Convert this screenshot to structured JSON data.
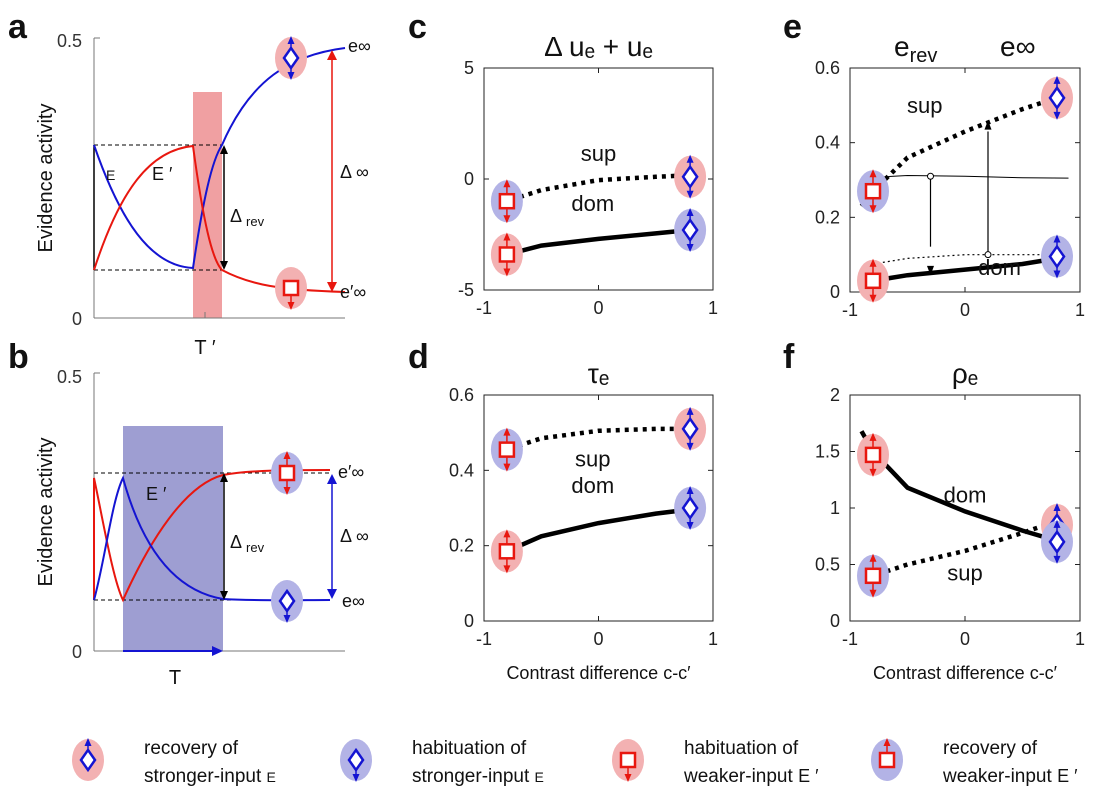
{
  "panel_letters": [
    "a",
    "b",
    "c",
    "d",
    "e",
    "f"
  ],
  "colors": {
    "red": "#e8170f",
    "blue": "#1414d2",
    "pink": "#f3b1b2",
    "lavender": "#b3b3e6",
    "shade_a": "#f0a0a2",
    "shade_b": "#9e9ed2"
  },
  "legend": [
    {
      "line1": "recovery of",
      "line2": "stronger-input",
      "sym": "E",
      "marker": "diamond",
      "arrow": "up",
      "bg": "pink"
    },
    {
      "line1": "habituation of",
      "line2": "stronger-input",
      "sym": "E",
      "marker": "diamond",
      "arrow": "down",
      "bg": "lavender"
    },
    {
      "line1": "habituation of",
      "line2": "weaker-input",
      "sym": "E ′",
      "marker": "square",
      "arrow": "down",
      "bg": "pink"
    },
    {
      "line1": "recovery of",
      "line2": "weaker-input",
      "sym": "E ′",
      "marker": "square",
      "arrow": "up",
      "bg": "lavender"
    }
  ],
  "panel_a": {
    "ylabel": "Evidence activity",
    "y_top": "0.5",
    "y_bottom": "0",
    "time_label": "T ′",
    "curve_E": "E",
    "curve_Eprime": "E ′",
    "delta_rev": "Δ",
    "delta_rev_sub": "rev",
    "delta_inf": "Δ ∞",
    "e_inf": "e∞",
    "eprime_inf": "e′∞"
  },
  "panel_b": {
    "ylabel": "Evidence activity",
    "y_top": "0.5",
    "y_bottom": "0",
    "time_label": "T",
    "curve_Eprime": "E ′",
    "delta_rev": "Δ",
    "delta_rev_sub": "rev",
    "delta_inf": "Δ ∞",
    "e_inf": "e∞",
    "eprime_inf": "e′∞"
  },
  "chart_data": [
    {
      "panel": "c",
      "type": "line",
      "title": "Δ uₑ + uₑ",
      "xlim": [
        -1,
        1
      ],
      "ylim": [
        -5,
        5
      ],
      "xticks": [
        "-1",
        "0",
        "1"
      ],
      "yticks": [
        "5",
        "0",
        "-5"
      ],
      "series": [
        {
          "name": "sup",
          "style": "dotted",
          "x": [
            -0.9,
            -0.8,
            -0.5,
            0,
            0.5,
            0.9
          ],
          "y": [
            -1.3,
            -1.0,
            -0.5,
            -0.05,
            0.1,
            0.2
          ]
        },
        {
          "name": "dom",
          "style": "solid",
          "x": [
            -0.9,
            -0.8,
            -0.5,
            0,
            0.5,
            0.9
          ],
          "y": [
            -3.7,
            -3.4,
            -3.0,
            -2.7,
            -2.45,
            -2.25
          ]
        }
      ],
      "markers": [
        {
          "x": -0.8,
          "y": -1.0,
          "marker": "square",
          "arrow": "updown",
          "bg": "lavender"
        },
        {
          "x": 0.8,
          "y": 0.1,
          "marker": "diamond",
          "arrow": "updown",
          "bg": "pink"
        },
        {
          "x": -0.8,
          "y": -3.4,
          "marker": "square",
          "arrow": "updown",
          "bg": "pink"
        },
        {
          "x": 0.8,
          "y": -2.3,
          "marker": "diamond",
          "arrow": "updown",
          "bg": "lavender"
        }
      ]
    },
    {
      "panel": "d",
      "type": "line",
      "title": "τₑ",
      "xlim": [
        -1,
        1
      ],
      "ylim": [
        0,
        0.6
      ],
      "xticks": [
        "-1",
        "0",
        "1"
      ],
      "yticks": [
        "0.6",
        "0.4",
        "0.2",
        "0"
      ],
      "xlabel": "Contrast difference  c-c′",
      "series": [
        {
          "name": "sup",
          "style": "dotted",
          "x": [
            -0.9,
            -0.8,
            -0.5,
            0,
            0.5,
            0.9
          ],
          "y": [
            0.43,
            0.455,
            0.485,
            0.505,
            0.51,
            0.51
          ]
        },
        {
          "name": "dom",
          "style": "solid",
          "x": [
            -0.9,
            -0.8,
            -0.5,
            0,
            0.5,
            0.9
          ],
          "y": [
            0.17,
            0.185,
            0.225,
            0.26,
            0.285,
            0.3
          ]
        }
      ],
      "markers": [
        {
          "x": -0.8,
          "y": 0.455,
          "marker": "square",
          "arrow": "updown",
          "bg": "lavender"
        },
        {
          "x": 0.8,
          "y": 0.51,
          "marker": "diamond",
          "arrow": "updown",
          "bg": "pink"
        },
        {
          "x": -0.8,
          "y": 0.185,
          "marker": "square",
          "arrow": "updown",
          "bg": "pink"
        },
        {
          "x": 0.8,
          "y": 0.3,
          "marker": "diamond",
          "arrow": "updown",
          "bg": "lavender"
        }
      ]
    },
    {
      "panel": "e",
      "type": "line",
      "title_left": "e",
      "title_left_sub": "rev",
      "title_right": "e∞",
      "xlim": [
        -1,
        1
      ],
      "ylim": [
        0,
        0.6
      ],
      "xticks": [
        "-1",
        "0",
        "1"
      ],
      "yticks": [
        "0.6",
        "0.4",
        "0.2",
        "0"
      ],
      "series": [
        {
          "name": "sup",
          "style": "dotted",
          "x": [
            -0.9,
            -0.8,
            -0.5,
            0,
            0.5,
            0.9
          ],
          "y": [
            0.23,
            0.27,
            0.36,
            0.43,
            0.49,
            0.53
          ]
        },
        {
          "name": "dom",
          "style": "solid",
          "x": [
            -0.9,
            -0.8,
            -0.5,
            0,
            0.5,
            0.9
          ],
          "y": [
            0.025,
            0.03,
            0.045,
            0.06,
            0.075,
            0.095
          ]
        },
        {
          "name": "",
          "style": "thin",
          "x": [
            -0.9,
            -0.5,
            0,
            0.5,
            0.9
          ],
          "y": [
            0.305,
            0.312,
            0.31,
            0.306,
            0.305
          ]
        },
        {
          "name": "",
          "style": "thin-dotted",
          "x": [
            -0.8,
            -0.5,
            0,
            0.5,
            0.9
          ],
          "y": [
            0.075,
            0.09,
            0.1,
            0.1,
            0.1
          ]
        }
      ],
      "markers": [
        {
          "x": -0.8,
          "y": 0.27,
          "marker": "square",
          "arrow": "updown",
          "bg": "lavender"
        },
        {
          "x": 0.8,
          "y": 0.52,
          "marker": "diamond",
          "arrow": "updown",
          "bg": "pink"
        },
        {
          "x": -0.8,
          "y": 0.03,
          "marker": "square",
          "arrow": "updown",
          "bg": "pink"
        },
        {
          "x": 0.8,
          "y": 0.095,
          "marker": "diamond",
          "arrow": "updown",
          "bg": "lavender"
        }
      ]
    },
    {
      "panel": "f",
      "type": "line",
      "title": "ρₑ",
      "xlim": [
        -1,
        1
      ],
      "ylim": [
        0,
        2
      ],
      "xticks": [
        "-1",
        "0",
        "1"
      ],
      "yticks": [
        "2",
        "1.5",
        "1",
        "0.5",
        "0"
      ],
      "xlabel": "Contrast difference  c-c′",
      "series": [
        {
          "name": "dom",
          "style": "solid",
          "x": [
            -0.9,
            -0.8,
            -0.5,
            0,
            0.5,
            0.9
          ],
          "y": [
            1.68,
            1.5,
            1.18,
            0.97,
            0.8,
            0.68
          ]
        },
        {
          "name": "sup",
          "style": "dotted",
          "x": [
            -0.9,
            -0.8,
            -0.5,
            0,
            0.5,
            0.9
          ],
          "y": [
            0.35,
            0.4,
            0.5,
            0.62,
            0.78,
            0.92
          ]
        }
      ],
      "markers": [
        {
          "x": -0.8,
          "y": 1.47,
          "marker": "square",
          "arrow": "updown",
          "bg": "pink"
        },
        {
          "x": 0.8,
          "y": 0.85,
          "marker": "diamond",
          "arrow": "updown",
          "bg": "pink"
        },
        {
          "x": 0.8,
          "y": 0.7,
          "marker": "diamond",
          "arrow": "updown",
          "bg": "lavender"
        },
        {
          "x": -0.8,
          "y": 0.4,
          "marker": "square",
          "arrow": "updown",
          "bg": "lavender"
        }
      ]
    }
  ]
}
